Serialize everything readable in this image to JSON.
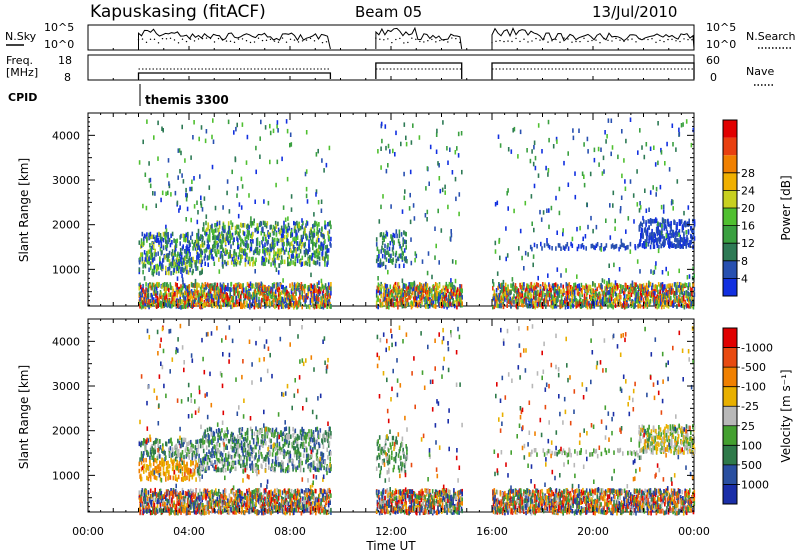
{
  "header": {
    "station": "Kapuskasing (fitACF)",
    "beam": "Beam 05",
    "date": "13/Jul/2010"
  },
  "panels": {
    "nsky_label": "N.Sky",
    "nsky_ticks": [
      "10^5",
      "10^0"
    ],
    "nsearch_label": "N.Search",
    "nsearch_ticks": [
      "10^5",
      "10^0"
    ],
    "freq_label": "Freq.",
    "freq_unit": "[MHz]",
    "freq_ticks": [
      "18",
      "8"
    ],
    "nave_label": "Nave",
    "nave_ticks": [
      "60",
      "0"
    ],
    "cpid_label": "CPID",
    "cpid_value": "themis 3300"
  },
  "colorbars": {
    "power": {
      "label": "Power [dB]",
      "ticks": [
        "4",
        "8",
        "12",
        "16",
        "20",
        "24",
        "28"
      ],
      "colors": [
        "#1230e0",
        "#2850b0",
        "#2e7a55",
        "#3aa040",
        "#50c030",
        "#c8d020",
        "#f0b000",
        "#f08000",
        "#e84010",
        "#e00000"
      ]
    },
    "velocity": {
      "label": "Velocity [m s⁻¹]",
      "ticks": [
        "1000",
        "500",
        "100",
        "25",
        "-25",
        "-100",
        "-500",
        "-1000"
      ],
      "colors": [
        "#1a2ea8",
        "#2a4fa0",
        "#2f7a4a",
        "#44a030",
        "#b8b8b8",
        "#e8b000",
        "#f08000",
        "#e84a10",
        "#e00000"
      ]
    }
  },
  "chart_data": [
    {
      "type": "heatmap",
      "name_hint": "Power panel",
      "ylabel": "Slant Range [km]",
      "yticks": [
        "1000",
        "2000",
        "3000",
        "4000"
      ],
      "ylim": [
        180,
        4500
      ],
      "xlim": [
        0,
        24
      ],
      "observing_intervals_ut": [
        [
          2.0,
          9.6
        ],
        [
          11.4,
          14.8
        ],
        [
          16.0,
          24.0
        ]
      ],
      "echo_regions": [
        {
          "ut": [
            2.0,
            9.6
          ],
          "range_km": [
            1000,
            2000
          ],
          "value": "4-20 dB"
        },
        {
          "ut": [
            11.4,
            12.6
          ],
          "range_km": [
            1100,
            1800
          ],
          "value": "4-12 dB"
        },
        {
          "ut": [
            21.8,
            24.0
          ],
          "range_km": [
            1600,
            2100
          ],
          "value": "4-8 dB"
        },
        {
          "ut": [
            2.0,
            24.0
          ],
          "range_km": [
            180,
            700
          ],
          "value": "4-28 dB"
        }
      ]
    },
    {
      "type": "heatmap",
      "name_hint": "Velocity panel",
      "ylabel": "Slant Range [km]",
      "yticks": [
        "1000",
        "2000",
        "3000",
        "4000"
      ],
      "ylim": [
        180,
        4500
      ],
      "xlim": [
        0,
        24
      ],
      "xlabel": "Time UT",
      "xticks": [
        "00:00",
        "04:00",
        "08:00",
        "12:00",
        "16:00",
        "20:00",
        "00:00"
      ],
      "echo_regions": [
        {
          "ut": [
            2.0,
            4.5
          ],
          "range_km": [
            900,
            1400
          ],
          "value": "-25 to -100 m/s"
        },
        {
          "ut": [
            4.0,
            9.6
          ],
          "range_km": [
            1200,
            2000
          ],
          "value": "25 to 500 m/s"
        },
        {
          "ut": [
            21.8,
            24.0
          ],
          "range_km": [
            1600,
            2100
          ],
          "value": "-25 to 25 m/s"
        }
      ]
    }
  ]
}
